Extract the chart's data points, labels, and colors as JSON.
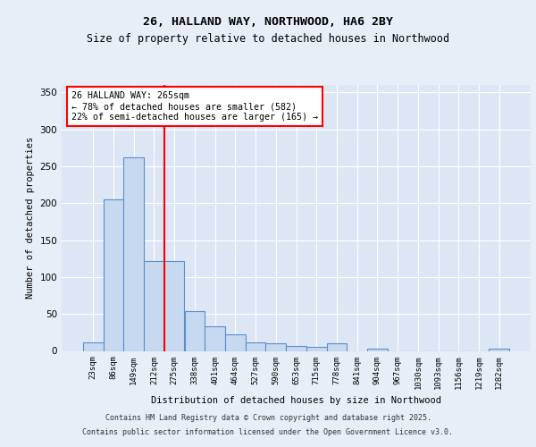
{
  "title1": "26, HALLAND WAY, NORTHWOOD, HA6 2BY",
  "title2": "Size of property relative to detached houses in Northwood",
  "xlabel": "Distribution of detached houses by size in Northwood",
  "ylabel": "Number of detached properties",
  "categories": [
    "23sqm",
    "86sqm",
    "149sqm",
    "212sqm",
    "275sqm",
    "338sqm",
    "401sqm",
    "464sqm",
    "527sqm",
    "590sqm",
    "653sqm",
    "715sqm",
    "778sqm",
    "841sqm",
    "904sqm",
    "967sqm",
    "1030sqm",
    "1093sqm",
    "1156sqm",
    "1219sqm",
    "1282sqm"
  ],
  "values": [
    12,
    205,
    262,
    122,
    122,
    54,
    33,
    22,
    12,
    10,
    7,
    5,
    10,
    0,
    3,
    0,
    0,
    0,
    0,
    0,
    3
  ],
  "bar_color": "#c6d9f0",
  "bar_edge_color": "#5b8fc9",
  "redline_x": 3.5,
  "annotation_line1": "26 HALLAND WAY: 265sqm",
  "annotation_line2": "← 78% of detached houses are smaller (582)",
  "annotation_line3": "22% of semi-detached houses are larger (165) →",
  "ylim": [
    0,
    360
  ],
  "yticks": [
    0,
    50,
    100,
    150,
    200,
    250,
    300,
    350
  ],
  "footer1": "Contains HM Land Registry data © Crown copyright and database right 2025.",
  "footer2": "Contains public sector information licensed under the Open Government Licence v3.0.",
  "bg_color": "#e8eef8",
  "plot_bg_color": "#dce6f5"
}
